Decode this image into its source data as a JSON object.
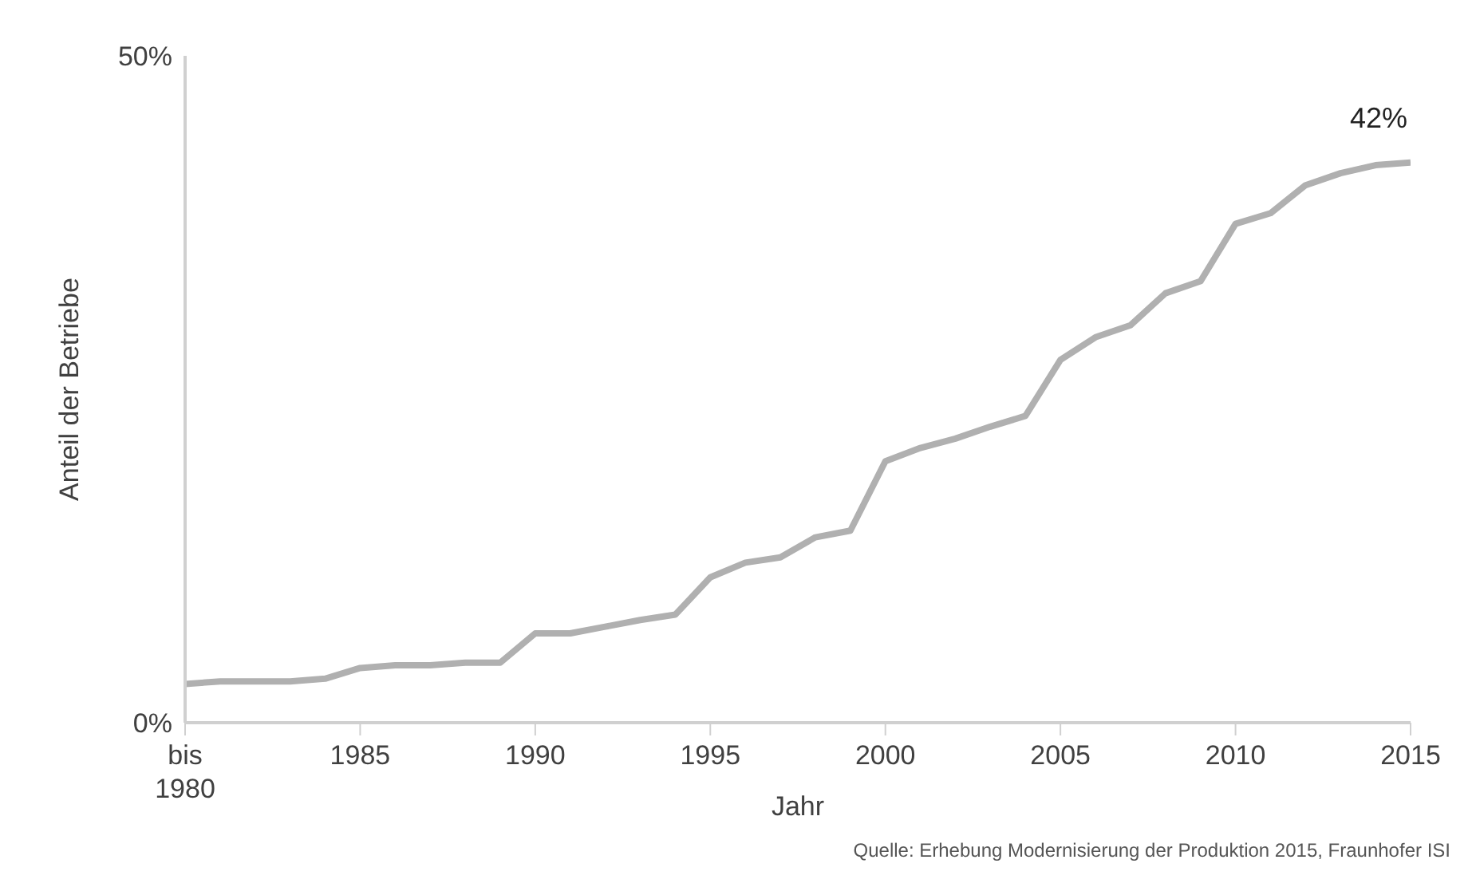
{
  "chart_data": {
    "type": "line",
    "xlabel": "Jahr",
    "ylabel": "Anteil der Betriebe",
    "x": [
      1980,
      1981,
      1982,
      1983,
      1984,
      1985,
      1986,
      1987,
      1988,
      1989,
      1990,
      1991,
      1992,
      1993,
      1994,
      1995,
      1996,
      1997,
      1998,
      1999,
      2000,
      2001,
      2002,
      2003,
      2004,
      2005,
      2006,
      2007,
      2008,
      2009,
      2010,
      2011,
      2012,
      2013,
      2014,
      2015
    ],
    "series": [
      {
        "color": "#b0b0b0",
        "values": [
          2.9,
          3.1,
          3.1,
          3.1,
          3.3,
          4.1,
          4.3,
          4.3,
          4.5,
          4.5,
          6.7,
          6.7,
          7.2,
          7.7,
          8.1,
          10.9,
          12.0,
          12.4,
          13.9,
          14.4,
          19.6,
          20.6,
          21.3,
          22.2,
          23.0,
          27.2,
          28.9,
          29.8,
          32.2,
          33.1,
          37.4,
          38.2,
          40.3,
          41.2,
          41.8,
          42
        ]
      }
    ],
    "xlim": [
      1980,
      2015
    ],
    "xticks": [
      {
        "value": 1980,
        "label": "bis\n1980"
      },
      1985,
      1990,
      1995,
      2000,
      2005,
      2010,
      2015
    ],
    "ylim": [
      0,
      50
    ],
    "yticks": [
      {
        "value": 0,
        "label": "0%"
      },
      {
        "value": 50,
        "label": "50%"
      }
    ],
    "grid": false,
    "legend": false,
    "marker": "none",
    "line_style": "solid",
    "annotations": [
      {
        "text": "42%",
        "x": 2015,
        "y": 42
      },
      "Quelle: Erhebung Modernisierung der Produktion 2015, Fraunhofer ISI"
    ]
  }
}
